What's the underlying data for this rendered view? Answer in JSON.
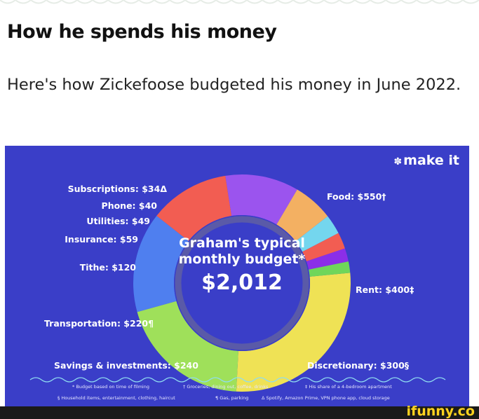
{
  "article": {
    "headline": "How he spends his money",
    "subhead": "Here's how Zickefoose budgeted his money in June 2022."
  },
  "infographic": {
    "brand": "make it",
    "brand_icon": "cnbc-peacock-icon",
    "center_title": "Graham's typical monthly budget*",
    "center_total": "$2,012",
    "labels": {
      "subscriptions": "Subscriptions: $34Δ",
      "phone": "Phone: $40",
      "utilities": "Utilities: $49",
      "insurance": "Insurance: $59",
      "tithe": "Tithe: $120",
      "transportation": "Transportation: $220¶",
      "savings": "Savings & investments: $240",
      "food": "Food: $550†",
      "rent": "Rent: $400‡",
      "discretionary": "Discretionary: $300§"
    },
    "footnotes": [
      "* Budget based on time of filming",
      "† Groceries, dining out, coffee, drinks",
      "‡ His share of a 4-bedroom apartment",
      "§ Household items, entertainment, clothing, haircut",
      "¶ Gas, parking",
      "Δ Spotify, Amazon Prime, VPN phone app, cloud storage"
    ],
    "colors": {
      "background": "#3a3ec8",
      "food": "#efe255",
      "rent": "#9fe05a",
      "discretionary": "#4f7fef",
      "savings": "#f25d52",
      "transportation": "#9b54ee",
      "tithe": "#f3b062",
      "insurance": "#74d6ee",
      "utilities": "#f25d52",
      "phone": "#8b2ee8",
      "subscriptions": "#6fd65a"
    }
  },
  "chart_data": {
    "type": "pie",
    "title": "Graham's typical monthly budget*",
    "total": "$2,012",
    "categories": [
      "Food",
      "Rent",
      "Discretionary",
      "Savings & investments",
      "Transportation",
      "Tithe",
      "Insurance",
      "Utilities",
      "Phone",
      "Subscriptions"
    ],
    "values": [
      550,
      400,
      300,
      240,
      220,
      120,
      59,
      49,
      40,
      34
    ],
    "style": "donut"
  },
  "watermark": {
    "text": "ifunny.co"
  }
}
